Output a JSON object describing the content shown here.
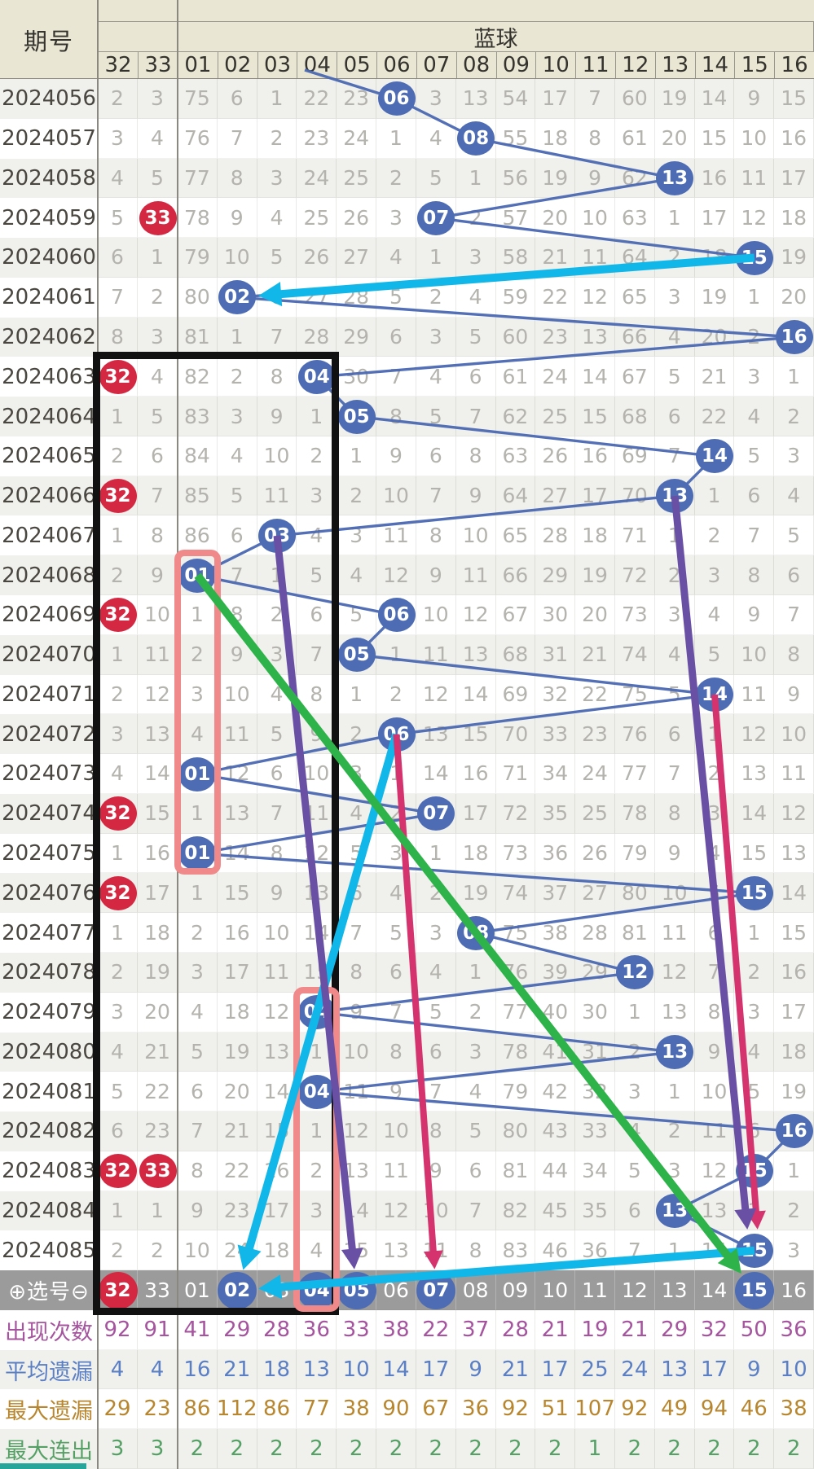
{
  "header": {
    "issue_label": "期号",
    "blue_group_label": "蓝球",
    "columns": [
      "32",
      "33",
      "01",
      "02",
      "03",
      "04",
      "05",
      "06",
      "07",
      "08",
      "09",
      "10",
      "11",
      "12",
      "13",
      "14",
      "15",
      "16"
    ]
  },
  "rows": [
    {
      "issue": "2024056",
      "values": [
        "2",
        "3",
        "75",
        "6",
        "1",
        "22",
        "23",
        "06",
        "3",
        "13",
        "54",
        "17",
        "7",
        "60",
        "19",
        "14",
        "9",
        "15"
      ],
      "blue_hit": "06",
      "red_hits": []
    },
    {
      "issue": "2024057",
      "values": [
        "3",
        "4",
        "76",
        "7",
        "2",
        "23",
        "24",
        "1",
        "4",
        "08",
        "55",
        "18",
        "8",
        "61",
        "20",
        "15",
        "10",
        "16"
      ],
      "blue_hit": "08",
      "red_hits": []
    },
    {
      "issue": "2024058",
      "values": [
        "4",
        "5",
        "77",
        "8",
        "3",
        "24",
        "25",
        "2",
        "5",
        "1",
        "56",
        "19",
        "9",
        "62",
        "13",
        "16",
        "11",
        "17"
      ],
      "blue_hit": "13",
      "red_hits": []
    },
    {
      "issue": "2024059",
      "values": [
        "5",
        "33",
        "78",
        "9",
        "4",
        "25",
        "26",
        "3",
        "07",
        "2",
        "57",
        "20",
        "10",
        "63",
        "1",
        "17",
        "12",
        "18"
      ],
      "blue_hit": "07",
      "red_hits": [
        "33"
      ]
    },
    {
      "issue": "2024060",
      "values": [
        "6",
        "1",
        "79",
        "10",
        "5",
        "26",
        "27",
        "4",
        "1",
        "3",
        "58",
        "21",
        "11",
        "64",
        "2",
        "18",
        "15",
        "19"
      ],
      "blue_hit": "15",
      "red_hits": []
    },
    {
      "issue": "2024061",
      "values": [
        "7",
        "2",
        "80",
        "02",
        "6",
        "27",
        "28",
        "5",
        "2",
        "4",
        "59",
        "22",
        "12",
        "65",
        "3",
        "19",
        "1",
        "20"
      ],
      "blue_hit": "02",
      "red_hits": []
    },
    {
      "issue": "2024062",
      "values": [
        "8",
        "3",
        "81",
        "1",
        "7",
        "28",
        "29",
        "6",
        "3",
        "5",
        "60",
        "23",
        "13",
        "66",
        "4",
        "20",
        "2",
        "16"
      ],
      "blue_hit": "16",
      "red_hits": []
    },
    {
      "issue": "2024063",
      "values": [
        "32",
        "4",
        "82",
        "2",
        "8",
        "04",
        "30",
        "7",
        "4",
        "6",
        "61",
        "24",
        "14",
        "67",
        "5",
        "21",
        "3",
        "1"
      ],
      "blue_hit": "04",
      "red_hits": [
        "32"
      ]
    },
    {
      "issue": "2024064",
      "values": [
        "1",
        "5",
        "83",
        "3",
        "9",
        "1",
        "05",
        "8",
        "5",
        "7",
        "62",
        "25",
        "15",
        "68",
        "6",
        "22",
        "4",
        "2"
      ],
      "blue_hit": "05",
      "red_hits": []
    },
    {
      "issue": "2024065",
      "values": [
        "2",
        "6",
        "84",
        "4",
        "10",
        "2",
        "1",
        "9",
        "6",
        "8",
        "63",
        "26",
        "16",
        "69",
        "7",
        "14",
        "5",
        "3"
      ],
      "blue_hit": "14",
      "red_hits": []
    },
    {
      "issue": "2024066",
      "values": [
        "32",
        "7",
        "85",
        "5",
        "11",
        "3",
        "2",
        "10",
        "7",
        "9",
        "64",
        "27",
        "17",
        "70",
        "13",
        "1",
        "6",
        "4"
      ],
      "blue_hit": "13",
      "red_hits": [
        "32"
      ]
    },
    {
      "issue": "2024067",
      "values": [
        "1",
        "8",
        "86",
        "6",
        "03",
        "4",
        "3",
        "11",
        "8",
        "10",
        "65",
        "28",
        "18",
        "71",
        "1",
        "2",
        "7",
        "5"
      ],
      "blue_hit": "03",
      "red_hits": []
    },
    {
      "issue": "2024068",
      "values": [
        "2",
        "9",
        "01",
        "7",
        "1",
        "5",
        "4",
        "12",
        "9",
        "11",
        "66",
        "29",
        "19",
        "72",
        "2",
        "3",
        "8",
        "6"
      ],
      "blue_hit": "01",
      "red_hits": []
    },
    {
      "issue": "2024069",
      "values": [
        "32",
        "10",
        "1",
        "8",
        "2",
        "6",
        "5",
        "06",
        "10",
        "12",
        "67",
        "30",
        "20",
        "73",
        "3",
        "4",
        "9",
        "7"
      ],
      "blue_hit": "06",
      "red_hits": [
        "32"
      ]
    },
    {
      "issue": "2024070",
      "values": [
        "1",
        "11",
        "2",
        "9",
        "3",
        "7",
        "05",
        "1",
        "11",
        "13",
        "68",
        "31",
        "21",
        "74",
        "4",
        "5",
        "10",
        "8"
      ],
      "blue_hit": "05",
      "red_hits": []
    },
    {
      "issue": "2024071",
      "values": [
        "2",
        "12",
        "3",
        "10",
        "4",
        "8",
        "1",
        "2",
        "12",
        "14",
        "69",
        "32",
        "22",
        "75",
        "5",
        "14",
        "11",
        "9"
      ],
      "blue_hit": "14",
      "red_hits": []
    },
    {
      "issue": "2024072",
      "values": [
        "3",
        "13",
        "4",
        "11",
        "5",
        "9",
        "2",
        "06",
        "13",
        "15",
        "70",
        "33",
        "23",
        "76",
        "6",
        "1",
        "12",
        "10"
      ],
      "blue_hit": "06",
      "red_hits": []
    },
    {
      "issue": "2024073",
      "values": [
        "4",
        "14",
        "01",
        "12",
        "6",
        "10",
        "3",
        "1",
        "14",
        "16",
        "71",
        "34",
        "24",
        "77",
        "7",
        "2",
        "13",
        "11"
      ],
      "blue_hit": "01",
      "red_hits": []
    },
    {
      "issue": "2024074",
      "values": [
        "32",
        "15",
        "1",
        "13",
        "7",
        "11",
        "4",
        "2",
        "07",
        "17",
        "72",
        "35",
        "25",
        "78",
        "8",
        "3",
        "14",
        "12"
      ],
      "blue_hit": "07",
      "red_hits": [
        "32"
      ]
    },
    {
      "issue": "2024075",
      "values": [
        "1",
        "16",
        "01",
        "14",
        "8",
        "12",
        "5",
        "3",
        "1",
        "18",
        "73",
        "36",
        "26",
        "79",
        "9",
        "4",
        "15",
        "13"
      ],
      "blue_hit": "01",
      "red_hits": []
    },
    {
      "issue": "2024076",
      "values": [
        "32",
        "17",
        "1",
        "15",
        "9",
        "13",
        "6",
        "4",
        "2",
        "19",
        "74",
        "37",
        "27",
        "80",
        "10",
        "5",
        "15",
        "14"
      ],
      "blue_hit": "15",
      "red_hits": [
        "32"
      ]
    },
    {
      "issue": "2024077",
      "values": [
        "1",
        "18",
        "2",
        "16",
        "10",
        "14",
        "7",
        "5",
        "3",
        "08",
        "75",
        "38",
        "28",
        "81",
        "11",
        "6",
        "1",
        "15"
      ],
      "blue_hit": "08",
      "red_hits": []
    },
    {
      "issue": "2024078",
      "values": [
        "2",
        "19",
        "3",
        "17",
        "11",
        "15",
        "8",
        "6",
        "4",
        "1",
        "76",
        "39",
        "29",
        "12",
        "12",
        "7",
        "2",
        "16"
      ],
      "blue_hit": "12",
      "red_hits": []
    },
    {
      "issue": "2024079",
      "values": [
        "3",
        "20",
        "4",
        "18",
        "12",
        "04",
        "9",
        "7",
        "5",
        "2",
        "77",
        "40",
        "30",
        "1",
        "13",
        "8",
        "3",
        "17"
      ],
      "blue_hit": "04",
      "red_hits": []
    },
    {
      "issue": "2024080",
      "values": [
        "4",
        "21",
        "5",
        "19",
        "13",
        "1",
        "10",
        "8",
        "6",
        "3",
        "78",
        "41",
        "31",
        "2",
        "13",
        "9",
        "4",
        "18"
      ],
      "blue_hit": "13",
      "red_hits": []
    },
    {
      "issue": "2024081",
      "values": [
        "5",
        "22",
        "6",
        "20",
        "14",
        "04",
        "11",
        "9",
        "7",
        "4",
        "79",
        "42",
        "32",
        "3",
        "1",
        "10",
        "5",
        "19"
      ],
      "blue_hit": "04",
      "red_hits": []
    },
    {
      "issue": "2024082",
      "values": [
        "6",
        "23",
        "7",
        "21",
        "15",
        "1",
        "12",
        "10",
        "8",
        "5",
        "80",
        "43",
        "33",
        "4",
        "2",
        "11",
        "6",
        "16"
      ],
      "blue_hit": "16",
      "red_hits": []
    },
    {
      "issue": "2024083",
      "values": [
        "32",
        "33",
        "8",
        "22",
        "16",
        "2",
        "13",
        "11",
        "9",
        "6",
        "81",
        "44",
        "34",
        "5",
        "3",
        "12",
        "15",
        "1"
      ],
      "blue_hit": "15",
      "red_hits": [
        "32",
        "33"
      ]
    },
    {
      "issue": "2024084",
      "values": [
        "1",
        "1",
        "9",
        "23",
        "17",
        "3",
        "14",
        "12",
        "10",
        "7",
        "82",
        "45",
        "35",
        "6",
        "13",
        "13",
        "1",
        "2"
      ],
      "blue_hit": "13",
      "red_hits": []
    },
    {
      "issue": "2024085",
      "values": [
        "2",
        "2",
        "10",
        "24",
        "18",
        "4",
        "15",
        "13",
        "11",
        "8",
        "83",
        "46",
        "36",
        "7",
        "1",
        "14",
        "15",
        "3"
      ],
      "blue_hit": "15",
      "red_hits": []
    }
  ],
  "selection": {
    "label": "⊕选号⊖",
    "values": [
      "32",
      "33",
      "01",
      "02",
      "03",
      "04",
      "05",
      "06",
      "07",
      "08",
      "09",
      "10",
      "11",
      "12",
      "13",
      "14",
      "15",
      "16"
    ],
    "red_circles": [
      "32"
    ],
    "blue_circles": [
      "02",
      "04",
      "05",
      "07",
      "15"
    ]
  },
  "stats": [
    {
      "label": "出现次数",
      "color": "#a5549e",
      "values": [
        "92",
        "91",
        "41",
        "29",
        "28",
        "36",
        "33",
        "38",
        "22",
        "37",
        "28",
        "21",
        "19",
        "21",
        "29",
        "32",
        "50",
        "36"
      ]
    },
    {
      "label": "平均遗漏",
      "color": "#5b7fc4",
      "values": [
        "4",
        "4",
        "16",
        "21",
        "18",
        "13",
        "10",
        "14",
        "17",
        "9",
        "21",
        "17",
        "25",
        "24",
        "13",
        "17",
        "9",
        "10"
      ]
    },
    {
      "label": "最大遗漏",
      "color": "#b8862f",
      "values": [
        "29",
        "23",
        "86",
        "112",
        "86",
        "77",
        "38",
        "90",
        "67",
        "36",
        "92",
        "51",
        "107",
        "92",
        "49",
        "94",
        "46",
        "38"
      ]
    },
    {
      "label": "最大连出",
      "color": "#55a065",
      "values": [
        "3",
        "3",
        "2",
        "2",
        "2",
        "2",
        "2",
        "2",
        "2",
        "2",
        "2",
        "2",
        "1",
        "2",
        "2",
        "2",
        "2",
        "2"
      ]
    }
  ],
  "colors": {
    "blue_ball": "#4d6cb4",
    "red_ball": "#d42741",
    "trend_line": "#4a68b2",
    "cyan": "#12b7ea",
    "green": "#2eb34a",
    "purple": "#6950a5",
    "pink": "#d4336d",
    "selection_bg": "#9b9b9b",
    "header_bg": "#e9e6d4",
    "highlight_box": "#f08a8a",
    "black_box": "#111111",
    "teal_bar": "#26a69a"
  },
  "annotations": {
    "arrows": [
      {
        "name": "cyan-arrow-1",
        "color_key": "cyan",
        "width": 10,
        "from": {
          "row": "2024060",
          "col": "15"
        },
        "to": {
          "row": "2024061",
          "col": "02"
        }
      },
      {
        "name": "cyan-arrow-2",
        "color_key": "cyan",
        "width": 10,
        "from": {
          "row": "2024072",
          "col": "06"
        },
        "to": {
          "row": "selection",
          "col": "02"
        }
      },
      {
        "name": "cyan-arrow-3",
        "color_key": "cyan",
        "width": 10,
        "from": {
          "row": "2024085",
          "col": "15"
        },
        "to": {
          "row": "selection",
          "col": "02"
        }
      },
      {
        "name": "pink-arrow-1",
        "color_key": "pink",
        "width": 8,
        "from": {
          "row": "2024072",
          "col": "06"
        },
        "to": {
          "row": "selection",
          "col": "07"
        }
      },
      {
        "name": "pink-arrow-2",
        "color_key": "pink",
        "width": 8,
        "tip_dx": 6,
        "from": {
          "row": "2024071",
          "col": "14"
        },
        "to": {
          "row": "2024085",
          "col": "15"
        }
      },
      {
        "name": "purple-arrow-1",
        "color_key": "purple",
        "width": 9,
        "from": {
          "row": "2024067",
          "col": "03"
        },
        "to": {
          "row": "selection",
          "col": "05"
        }
      },
      {
        "name": "purple-arrow-2",
        "color_key": "purple",
        "width": 9,
        "tip_dx": -6,
        "from": {
          "row": "2024066",
          "col": "13"
        },
        "to": {
          "row": "2024085",
          "col": "15"
        }
      },
      {
        "name": "green-arrow",
        "color_key": "green",
        "width": 10,
        "from": {
          "row": "2024068",
          "col": "01"
        },
        "to": {
          "row": "selection",
          "col": "15"
        }
      }
    ],
    "black_box": {
      "from_col": "32",
      "to_col": "04",
      "from_row": "2024063",
      "to_row": "selection"
    },
    "highlight_boxes": [
      {
        "col": "01",
        "from_row": "2024068",
        "to_row": "2024075"
      },
      {
        "col": "04",
        "from_row": "2024079",
        "to_row": "selection"
      }
    ]
  }
}
